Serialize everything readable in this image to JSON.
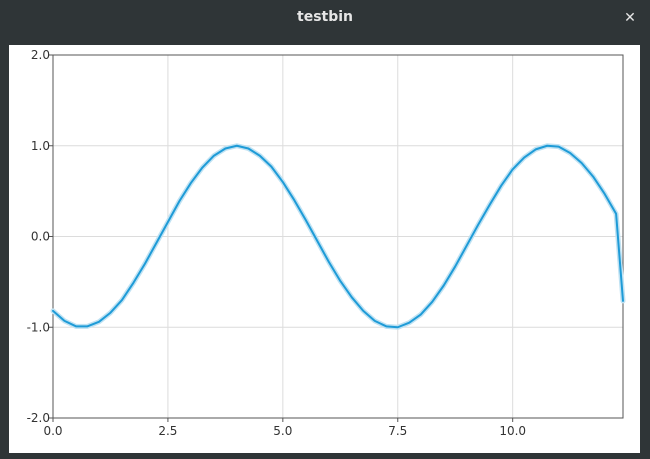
{
  "window": {
    "title": "testbin",
    "close_glyph": "✕"
  },
  "chart_data": {
    "type": "line",
    "title": "",
    "xlabel": "",
    "ylabel": "",
    "xlim": [
      0,
      12.4
    ],
    "ylim": [
      -2,
      2
    ],
    "x_ticks": [
      0,
      2.5,
      5,
      7.5,
      10
    ],
    "x_tick_labels": [
      "0.0",
      "2.5",
      "5.0",
      "7.5",
      "10.0"
    ],
    "y_ticks": [
      2,
      1,
      0,
      -1,
      -2
    ],
    "y_tick_labels": [
      "2.0",
      "1.0",
      "0.0",
      "-1.0",
      "-2.0"
    ],
    "grid": true,
    "series": [
      {
        "color": "#1e9bd7",
        "x": [
          0,
          0.25,
          0.5,
          0.75,
          1.0,
          1.25,
          1.5,
          1.75,
          2.0,
          2.25,
          2.5,
          2.75,
          3.0,
          3.25,
          3.5,
          3.75,
          4.0,
          4.25,
          4.5,
          4.75,
          5.0,
          5.25,
          5.5,
          5.75,
          6.0,
          6.25,
          6.5,
          6.75,
          7.0,
          7.25,
          7.5,
          7.75,
          8.0,
          8.25,
          8.5,
          8.75,
          9.0,
          9.25,
          9.5,
          9.75,
          10.0,
          10.25,
          10.5,
          10.75,
          11.0,
          11.25,
          11.5,
          11.75,
          12.0,
          12.25,
          12.4
        ],
        "y": [
          -0.82,
          -0.93,
          -0.99,
          -0.99,
          -0.94,
          -0.84,
          -0.7,
          -0.51,
          -0.3,
          -0.07,
          0.16,
          0.39,
          0.59,
          0.76,
          0.89,
          0.97,
          1.0,
          0.97,
          0.89,
          0.77,
          0.6,
          0.4,
          0.18,
          -0.05,
          -0.28,
          -0.49,
          -0.67,
          -0.82,
          -0.93,
          -0.99,
          -1.0,
          -0.95,
          -0.86,
          -0.72,
          -0.54,
          -0.33,
          -0.1,
          0.13,
          0.35,
          0.56,
          0.74,
          0.87,
          0.96,
          1.0,
          0.99,
          0.92,
          0.81,
          0.66,
          0.47,
          0.25,
          -0.71
        ]
      }
    ]
  }
}
